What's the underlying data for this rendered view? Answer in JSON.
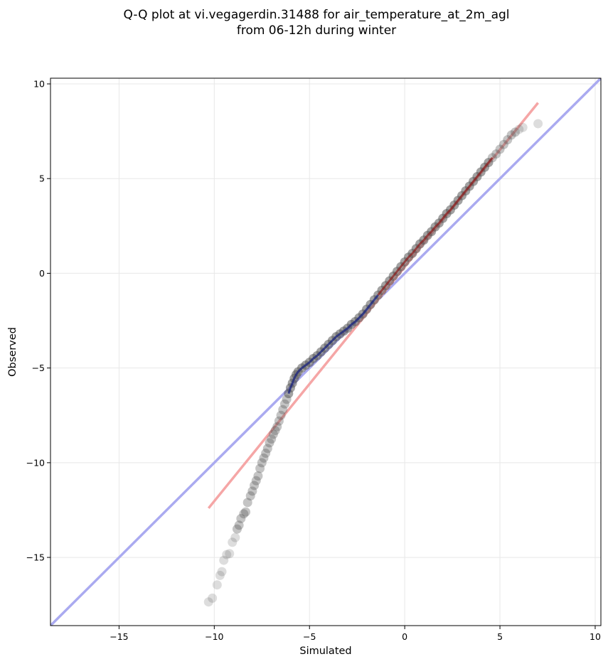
{
  "chart_data": {
    "type": "scatter",
    "title_lines": [
      "Q-Q plot at vi.vegagerdin.31488 for air_temperature_at_2m_agl",
      "from 06-12h during winter"
    ],
    "xlabel": "Simulated",
    "ylabel": "Observed",
    "xlim": [
      -18.6,
      10.3
    ],
    "ylim": [
      -18.6,
      10.3
    ],
    "xticks": [
      -15,
      -10,
      -5,
      0,
      5,
      10
    ],
    "yticks": [
      -15,
      -10,
      -5,
      0,
      5,
      10
    ],
    "xtick_labels": [
      "−15",
      "−10",
      "−5",
      "0",
      "5",
      "10"
    ],
    "ytick_labels": [
      "−15",
      "−10",
      "−5",
      "0",
      "5",
      "10"
    ],
    "grid": true,
    "colors": {
      "points": "#555555",
      "identity_line": "#aaaaf0",
      "fit_line": "#f5a6a6",
      "central_overlay_blue": "#1a237e",
      "central_overlay_red": "#8b1a1a",
      "grid": "#e8e8e8"
    },
    "lines": {
      "identity": {
        "x": [
          -18.6,
          10.3
        ],
        "y": [
          -18.6,
          10.3
        ]
      },
      "fit": {
        "x": [
          -10.3,
          7.0
        ],
        "y": [
          -12.4,
          9.0
        ]
      }
    },
    "points": {
      "x": [
        -10.3,
        -10.1,
        -9.85,
        -9.7,
        -9.6,
        -9.5,
        -9.35,
        -9.2,
        -9.05,
        -8.9,
        -8.8,
        -8.7,
        -8.6,
        -8.45,
        -8.35,
        -8.25,
        -8.1,
        -8.0,
        -7.9,
        -7.8,
        -7.7,
        -7.6,
        -7.5,
        -7.4,
        -7.3,
        -7.2,
        -7.1,
        -7.0,
        -6.9,
        -6.8,
        -6.7,
        -6.6,
        -6.5,
        -6.4,
        -6.3,
        -6.2,
        -6.1,
        -6.0,
        -5.9,
        -5.8,
        -5.7,
        -5.6,
        -5.4,
        -5.2,
        -5.0,
        -4.8,
        -4.6,
        -4.4,
        -4.2,
        -4.0,
        -3.8,
        -3.6,
        -3.4,
        -3.2,
        -3.0,
        -2.8,
        -2.6,
        -2.4,
        -2.2,
        -2.0,
        -1.8,
        -1.6,
        -1.4,
        -1.2,
        -1.0,
        -0.8,
        -0.6,
        -0.4,
        -0.2,
        0.0,
        0.2,
        0.4,
        0.6,
        0.8,
        1.0,
        1.2,
        1.4,
        1.6,
        1.8,
        2.0,
        2.2,
        2.4,
        2.6,
        2.8,
        3.0,
        3.2,
        3.4,
        3.6,
        3.8,
        4.0,
        4.2,
        4.4,
        4.6,
        4.8,
        5.0,
        5.2,
        5.4,
        5.6,
        5.8,
        6.0,
        6.2,
        7.0
      ],
      "y": [
        -17.35,
        -17.15,
        -16.45,
        -15.95,
        -15.75,
        -15.15,
        -14.85,
        -14.8,
        -14.2,
        -13.95,
        -13.5,
        -13.3,
        -12.95,
        -12.7,
        -12.6,
        -12.1,
        -11.75,
        -11.5,
        -11.2,
        -10.95,
        -10.7,
        -10.3,
        -10.0,
        -9.75,
        -9.5,
        -9.25,
        -8.95,
        -8.75,
        -8.5,
        -8.3,
        -8.1,
        -7.8,
        -7.5,
        -7.2,
        -6.9,
        -6.65,
        -6.35,
        -6.05,
        -5.8,
        -5.55,
        -5.35,
        -5.2,
        -5.0,
        -4.85,
        -4.7,
        -4.5,
        -4.35,
        -4.15,
        -3.95,
        -3.75,
        -3.55,
        -3.35,
        -3.2,
        -3.05,
        -2.9,
        -2.7,
        -2.55,
        -2.35,
        -2.15,
        -1.9,
        -1.65,
        -1.4,
        -1.15,
        -0.9,
        -0.65,
        -0.4,
        -0.15,
        0.1,
        0.35,
        0.6,
        0.85,
        1.05,
        1.3,
        1.55,
        1.75,
        2.0,
        2.2,
        2.45,
        2.65,
        2.9,
        3.15,
        3.35,
        3.6,
        3.85,
        4.1,
        4.35,
        4.6,
        4.85,
        5.1,
        5.35,
        5.6,
        5.85,
        6.1,
        6.3,
        6.55,
        6.8,
        7.05,
        7.3,
        7.45,
        7.6,
        7.7,
        7.9
      ]
    }
  }
}
